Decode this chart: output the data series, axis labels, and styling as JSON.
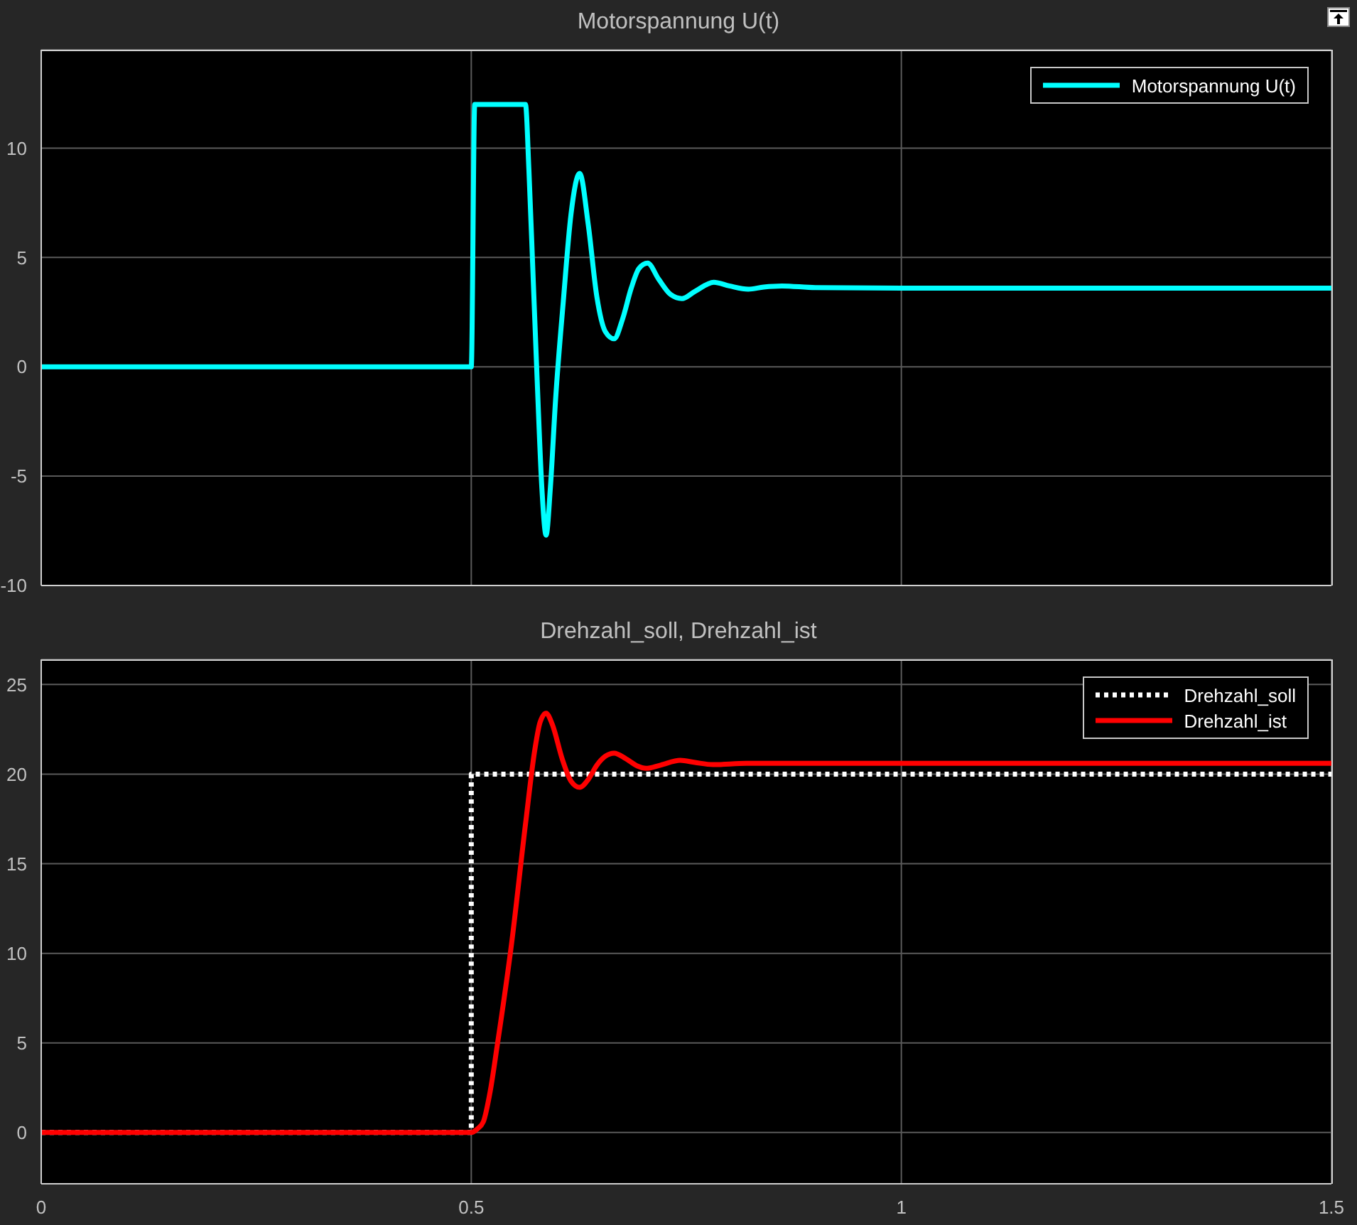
{
  "chart_data": [
    {
      "type": "line",
      "title": "Motorspannung U(t)",
      "xlim": [
        0,
        1.5
      ],
      "xticks": [
        0,
        0.5,
        1,
        1.5
      ],
      "ylim": [
        -10,
        14.5
      ],
      "yticks": [
        -10,
        -5,
        0,
        5,
        10
      ],
      "grid": true,
      "legend": "top right",
      "tick_labels": "y",
      "marker": "none",
      "series": [
        {
          "name": "Motorspannung U(t)",
          "color": "#00ffff",
          "line_style": "solid",
          "x": [
            0,
            0.5,
            0.504,
            0.563,
            0.567,
            0.572,
            0.577,
            0.582,
            0.587,
            0.592,
            0.598,
            0.607,
            0.616,
            0.626,
            0.636,
            0.646,
            0.656,
            0.666,
            0.676,
            0.686,
            0.695,
            0.705,
            0.718,
            0.732,
            0.745,
            0.76,
            0.782,
            0.8,
            0.822,
            0.84,
            0.861,
            0.9,
            1.0,
            1.5
          ],
          "values": [
            0,
            0,
            12,
            12,
            9,
            4,
            -1,
            -5.5,
            -7.7,
            -5.5,
            -1.5,
            3,
            7,
            8.85,
            6.5,
            3.2,
            1.6,
            1.28,
            2.2,
            3.6,
            4.5,
            4.74,
            4.0,
            3.3,
            3.12,
            3.45,
            3.87,
            3.7,
            3.55,
            3.65,
            3.7,
            3.62,
            3.6,
            3.6
          ]
        }
      ]
    },
    {
      "type": "line",
      "title": "Drehzahl_soll, Drehzahl_ist",
      "xlim": [
        0,
        1.5
      ],
      "xticks": [
        0,
        0.5,
        1,
        1.5
      ],
      "ylim": [
        -2.86,
        26.4
      ],
      "yticks": [
        0,
        5,
        10,
        15,
        20,
        25
      ],
      "grid": true,
      "legend": "top right",
      "marker": "none",
      "series": [
        {
          "name": "Drehzahl_soll",
          "color": "#ffffff",
          "line_style": "dotted",
          "x": [
            0,
            0.5,
            0.5,
            1.5
          ],
          "values": [
            0,
            0,
            20,
            20
          ]
        },
        {
          "name": "Drehzahl_ist",
          "color": "#ff0000",
          "line_style": "solid",
          "x": [
            0,
            0.5,
            0.507,
            0.514,
            0.522,
            0.53,
            0.547,
            0.563,
            0.574,
            0.58,
            0.587,
            0.594,
            0.606,
            0.616,
            0.626,
            0.636,
            0.646,
            0.656,
            0.666,
            0.68,
            0.693,
            0.703,
            0.72,
            0.743,
            0.76,
            0.781,
            0.82,
            1.0,
            1.5
          ],
          "values": [
            0,
            0,
            0.2,
            0.6,
            2.3,
            4.8,
            10.6,
            17.2,
            21.4,
            22.9,
            23.4,
            22.8,
            20.8,
            19.6,
            19.26,
            19.7,
            20.5,
            21.0,
            21.17,
            20.85,
            20.45,
            20.32,
            20.5,
            20.77,
            20.65,
            20.53,
            20.6,
            20.6,
            20.6
          ]
        }
      ]
    }
  ]
}
